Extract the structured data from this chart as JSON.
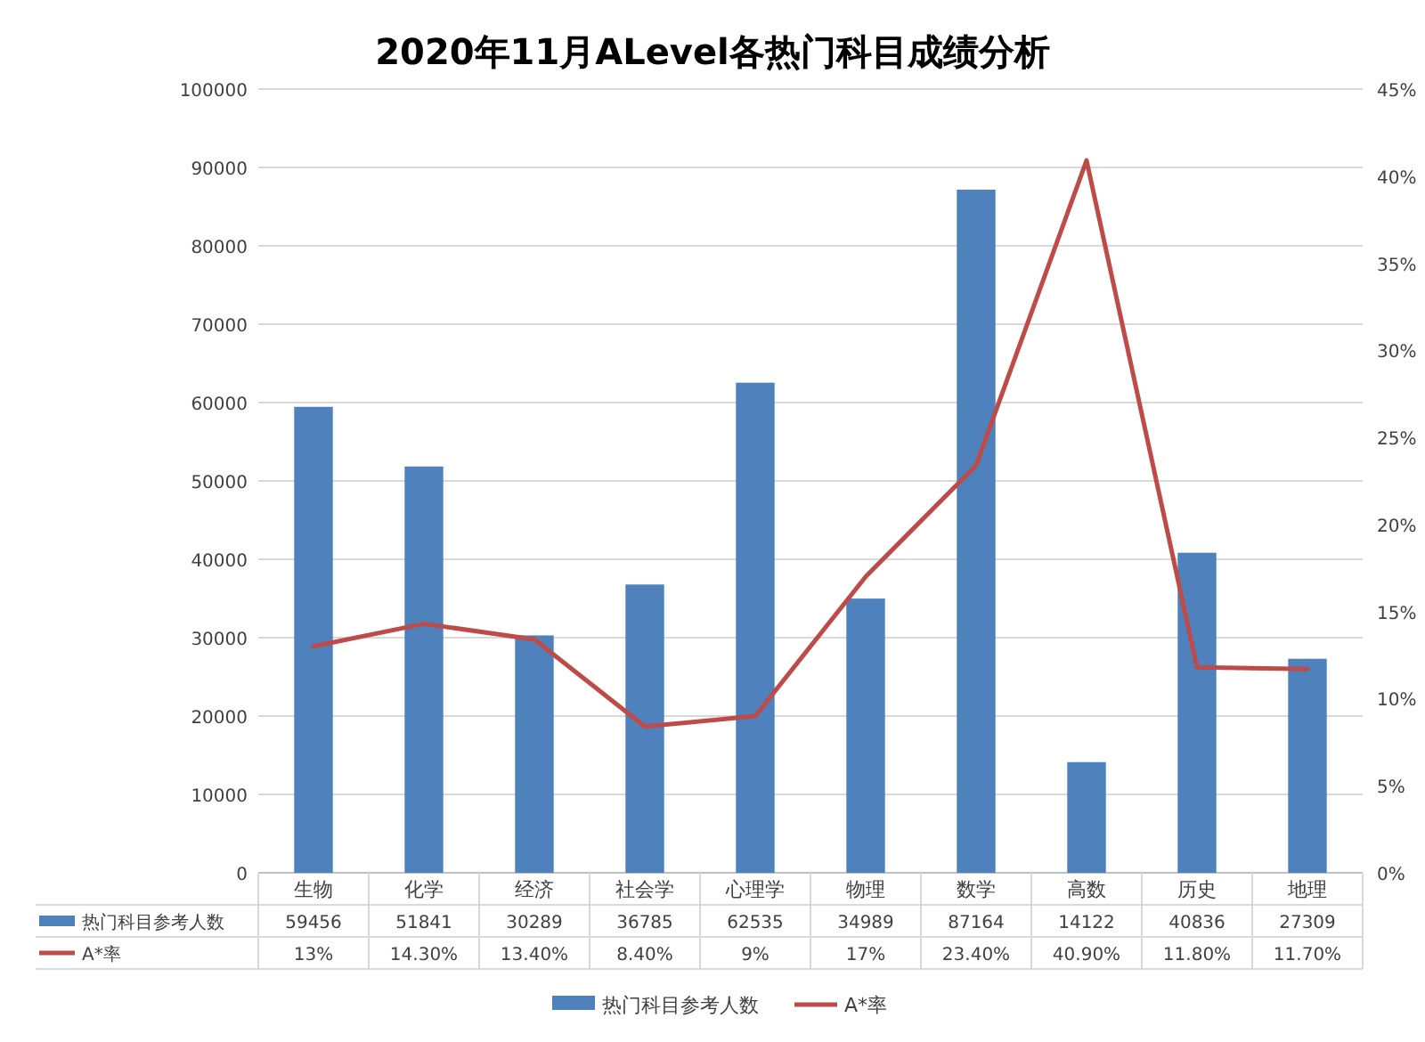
{
  "chart_data": {
    "type": "bar",
    "title": "2020年11月ALevel各热门科目成绩分析",
    "categories": [
      "生物",
      "化学",
      "经济",
      "社会学",
      "心理学",
      "物理",
      "数学",
      "高数",
      "历史",
      "地理"
    ],
    "series": [
      {
        "name": "热门科目参考人数",
        "color": "#4f81bd",
        "values": [
          59456,
          51841,
          30289,
          36785,
          62535,
          34989,
          87164,
          14122,
          40836,
          27309
        ],
        "value_labels": [
          "59456",
          "51841",
          "30289",
          "36785",
          "62535",
          "34989",
          "87164",
          "14122",
          "40836",
          "27309"
        ]
      },
      {
        "name": "A*率",
        "type": "line",
        "axis": "y2",
        "color": "#be4b48",
        "values": [
          13,
          14.3,
          13.4,
          8.4,
          9,
          17,
          23.4,
          40.9,
          11.8,
          11.7
        ],
        "value_labels": [
          "13%",
          "14.30%",
          "13.40%",
          "8.40%",
          "9%",
          "17%",
          "23.40%",
          "40.90%",
          "11.80%",
          "11.70%"
        ]
      }
    ],
    "ylim": [
      0,
      100000
    ],
    "yticks": [
      0,
      10000,
      20000,
      30000,
      40000,
      50000,
      60000,
      70000,
      80000,
      90000,
      100000
    ],
    "y2lim": [
      0,
      45
    ],
    "y2ticks": [
      {
        "value": 0,
        "label": "0%"
      },
      {
        "value": 5,
        "label": "5%"
      },
      {
        "value": 10,
        "label": "10%"
      },
      {
        "value": 15,
        "label": "15%"
      },
      {
        "value": 20,
        "label": "20%"
      },
      {
        "value": 25,
        "label": "25%"
      },
      {
        "value": 30,
        "label": "30%"
      },
      {
        "value": 35,
        "label": "35%"
      },
      {
        "value": 40,
        "label": "40%"
      },
      {
        "value": 45,
        "label": "45%"
      }
    ],
    "grid": "y",
    "legend": "bottom"
  }
}
